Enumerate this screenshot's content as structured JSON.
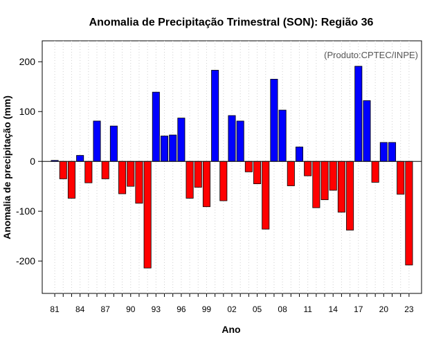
{
  "chart_data": {
    "type": "bar",
    "title": "Anomalia de Precipitação Trimestral (SON): Região 36",
    "xlabel": "Ano",
    "ylabel": "Anomalia de precipitação (mm)",
    "annotation": "(Produto:CPTEC/INPE)",
    "ylim": [
      -265,
      242
    ],
    "yticks": [
      -200,
      -100,
      0,
      100,
      200
    ],
    "xtick_labels": [
      "81",
      "84",
      "87",
      "90",
      "93",
      "96",
      "99",
      "02",
      "05",
      "08",
      "11",
      "14",
      "17",
      "20",
      "23"
    ],
    "xtick_every": 3,
    "grid": "vertical dotted",
    "positive_color": "#0000ff",
    "negative_color": "#ff0000",
    "years": [
      1981,
      1982,
      1983,
      1984,
      1985,
      1986,
      1987,
      1988,
      1989,
      1990,
      1991,
      1992,
      1993,
      1994,
      1995,
      1996,
      1997,
      1998,
      1999,
      2000,
      2001,
      2002,
      2003,
      2004,
      2005,
      2006,
      2007,
      2008,
      2009,
      2010,
      2011,
      2012,
      2013,
      2014,
      2015,
      2016,
      2017,
      2018,
      2019,
      2020,
      2021,
      2022,
      2023
    ],
    "values": [
      2,
      -35,
      -74,
      12,
      -43,
      81,
      -35,
      71,
      -65,
      -50,
      -84,
      -214,
      139,
      51,
      53,
      87,
      -74,
      -52,
      -91,
      183,
      -79,
      92,
      81,
      -21,
      -45,
      -136,
      165,
      103,
      -49,
      29,
      -29,
      -93,
      -77,
      -58,
      -102,
      -138,
      191,
      122,
      -42,
      38,
      38,
      -66,
      -208
    ]
  }
}
